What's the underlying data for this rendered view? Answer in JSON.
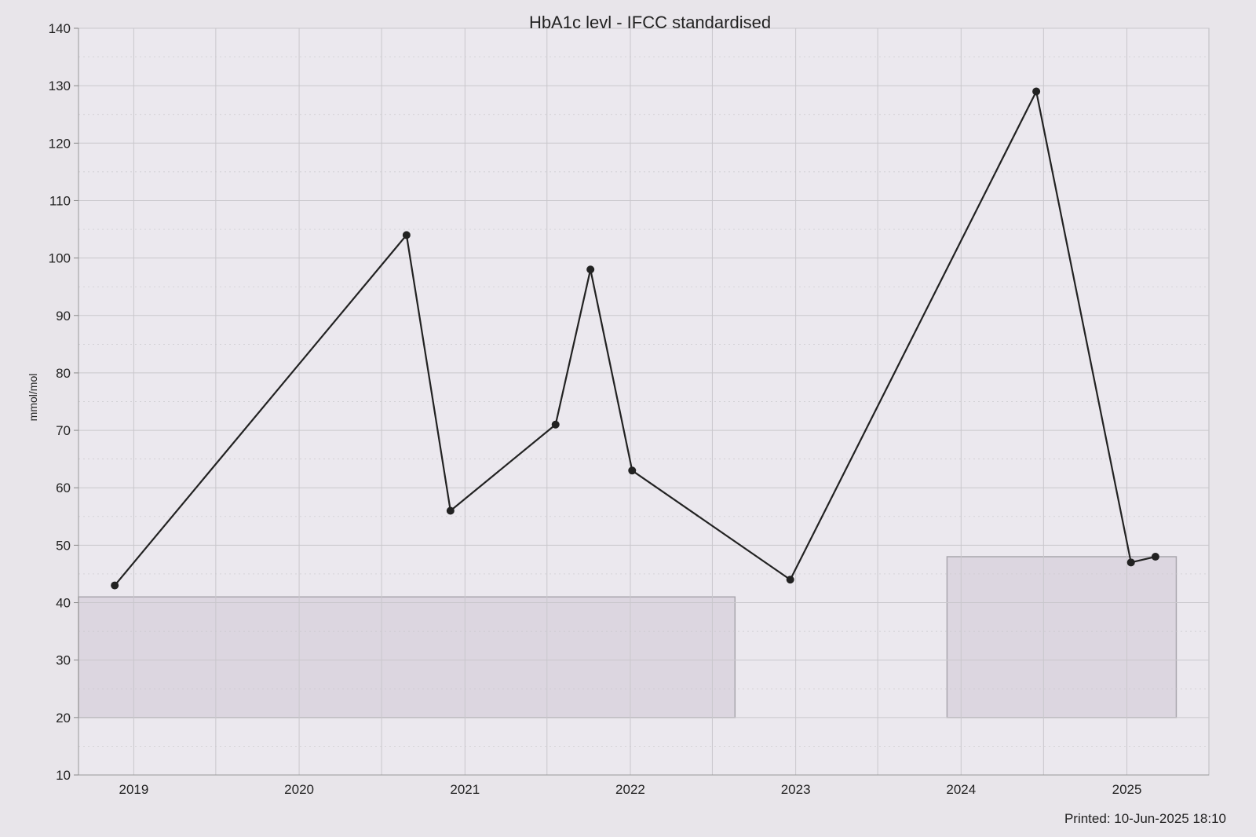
{
  "chart_data": {
    "type": "line",
    "title": "HbA1c levl - IFCC standardised",
    "ylabel": "mmol/mol",
    "xlabel": "",
    "ylim": [
      10,
      140
    ],
    "yticks": [
      10,
      20,
      30,
      40,
      50,
      60,
      70,
      80,
      90,
      100,
      110,
      120,
      130,
      140
    ],
    "xlim": [
      "2018-09-01",
      "2025-07-01"
    ],
    "xticks": [
      {
        "label": "2019",
        "date": "2019-01-01"
      },
      {
        "label": "2020",
        "date": "2020-01-01"
      },
      {
        "label": "2021",
        "date": "2021-01-01"
      },
      {
        "label": "2022",
        "date": "2022-01-01"
      },
      {
        "label": "2023",
        "date": "2023-01-01"
      },
      {
        "label": "2024",
        "date": "2024-01-01"
      },
      {
        "label": "2025",
        "date": "2025-01-01"
      }
    ],
    "grid": true,
    "series": [
      {
        "points": [
          {
            "x": "2018-11-20",
            "y": 43
          },
          {
            "x": "2020-08-25",
            "y": 104
          },
          {
            "x": "2020-11-30",
            "y": 56
          },
          {
            "x": "2021-07-20",
            "y": 71
          },
          {
            "x": "2021-10-05",
            "y": 98
          },
          {
            "x": "2022-01-05",
            "y": 63
          },
          {
            "x": "2022-12-20",
            "y": 44
          },
          {
            "x": "2024-06-15",
            "y": 129
          },
          {
            "x": "2025-01-10",
            "y": 47
          },
          {
            "x": "2025-03-05",
            "y": 48
          }
        ],
        "color": "#222222"
      }
    ],
    "reference_ranges": [
      {
        "x_start": "2018-09-01",
        "x_end": "2022-08-20",
        "y_low": 20,
        "y_high": 41
      },
      {
        "x_start": "2023-12-01",
        "x_end": "2025-04-20",
        "y_low": 20,
        "y_high": 48
      }
    ],
    "colors": {
      "line": "#222222",
      "grid": "#c9c7cc",
      "range_fill": "#dcd6e0",
      "range_stroke": "#a9a6ad"
    }
  },
  "footer": {
    "printed": "Printed: 10-Jun-2025 18:10"
  }
}
